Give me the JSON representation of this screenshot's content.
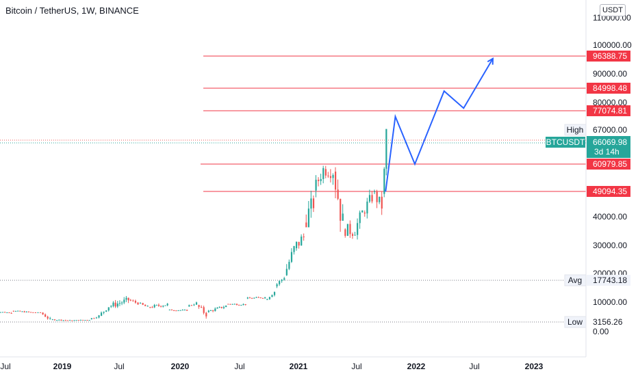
{
  "header": {
    "title": "Bitcoin / TetherUS, 1W, BINANCE",
    "currency_button": "USDT"
  },
  "colors": {
    "up": "#26a69a",
    "down": "#ef5350",
    "level_line": "#f23645",
    "projection": "#2962ff",
    "axis_text": "#131722",
    "grid_border": "#e0e3eb"
  },
  "chart_data": {
    "type": "candlestick",
    "title": "Bitcoin / TetherUS, 1W, BINANCE",
    "x_ticks": [
      "Jul",
      "2019",
      "Jul",
      "2020",
      "Jul",
      "2021",
      "Jul",
      "2022",
      "Jul",
      "2023"
    ],
    "y_ticks": [
      "0.00",
      "10000.00",
      "20000.00",
      "30000.00",
      "40000.00",
      "80000.00",
      "90000.00",
      "100000.00",
      "110000.00"
    ],
    "y_scale": "logarithmic-like (TradingView auto)",
    "price_candles_approx": [
      [
        "2018-06",
        6800,
        7600,
        6600,
        6350
      ],
      [
        "2018-08",
        7000,
        7500,
        6400,
        6500
      ],
      [
        "2018-10",
        6500,
        6700,
        6300,
        6400
      ],
      [
        "2018-11",
        6400,
        6500,
        3700,
        4000
      ],
      [
        "2018-12",
        4000,
        4200,
        3156,
        3700
      ],
      [
        "2019-02",
        3700,
        4100,
        3500,
        3900
      ],
      [
        "2019-04",
        4100,
        5800,
        4000,
        5300
      ],
      [
        "2019-05",
        5300,
        8900,
        5200,
        8500
      ],
      [
        "2019-06",
        8500,
        13800,
        8000,
        10800
      ],
      [
        "2019-08",
        10800,
        12300,
        9400,
        9600
      ],
      [
        "2019-09",
        9600,
        10500,
        8000,
        8300
      ],
      [
        "2019-10",
        8300,
        10400,
        7300,
        9200
      ],
      [
        "2019-12",
        7300,
        7600,
        6500,
        7200
      ],
      [
        "2020-02",
        8500,
        10500,
        8400,
        9700
      ],
      [
        "2020-03",
        9000,
        9200,
        3800,
        5800
      ],
      [
        "2020-04",
        6600,
        8900,
        6200,
        8700
      ],
      [
        "2020-06",
        9400,
        10400,
        8900,
        9200
      ],
      [
        "2020-08",
        11300,
        12400,
        10800,
        11700
      ],
      [
        "2020-10",
        10800,
        13900,
        10500,
        13700
      ],
      [
        "2020-11",
        15600,
        19500,
        15000,
        18800
      ],
      [
        "2020-12",
        19400,
        29000,
        17600,
        28900
      ],
      [
        "2021-01",
        29000,
        41900,
        28100,
        33000
      ],
      [
        "2021-02",
        38000,
        58300,
        38000,
        45000
      ],
      [
        "2021-03",
        49500,
        61700,
        45000,
        58700
      ],
      [
        "2021-04",
        58800,
        64900,
        47000,
        57800
      ],
      [
        "2021-05",
        57700,
        59600,
        30000,
        37300
      ],
      [
        "2021-06",
        35600,
        41300,
        28800,
        35000
      ],
      [
        "2021-07",
        33500,
        42300,
        29300,
        41500
      ],
      [
        "2021-08",
        41500,
        50500,
        37300,
        47000
      ],
      [
        "2021-09",
        49000,
        52900,
        39600,
        43800
      ],
      [
        "2021-10",
        48200,
        67000,
        47000,
        66069.98
      ]
    ],
    "horizontal_levels": [
      {
        "label": "96388.75",
        "value": 96388.75
      },
      {
        "label": "84998.48",
        "value": 84998.48
      },
      {
        "label": "77074.81",
        "value": 77074.81
      },
      {
        "label": "60979.85",
        "value": 60979.85
      },
      {
        "label": "49094.35",
        "value": 49094.35
      }
    ],
    "projection_path": [
      {
        "date": "2021-10",
        "price": 49000
      },
      {
        "date": "2021-11",
        "price": 74000
      },
      {
        "date": "2022-01",
        "price": 60979.85
      },
      {
        "date": "2022-04",
        "price": 84000
      },
      {
        "date": "2022-06",
        "price": 78000
      },
      {
        "date": "2022-09",
        "price": 95500
      }
    ],
    "current_price": {
      "symbol": "BTCUSDT",
      "value": "66069.98",
      "countdown": "3d 14h"
    },
    "stats": {
      "high": {
        "label": "High",
        "value": "67000.00"
      },
      "avg": {
        "label": "Avg",
        "value": "17743.18"
      },
      "low": {
        "label": "Low",
        "value": "3156.26"
      }
    }
  }
}
